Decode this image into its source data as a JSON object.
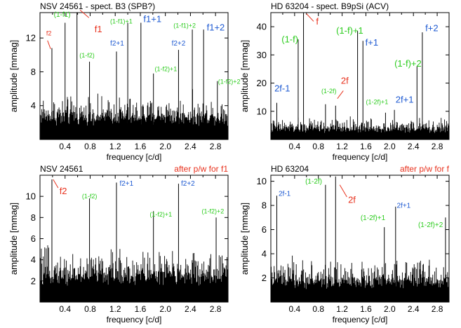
{
  "colors": {
    "red": "#e8321e",
    "green": "#2ccc1e",
    "blue": "#1e5ad2",
    "black": "#000000"
  },
  "chart_data": [
    {
      "type": "line",
      "panel": "top-left",
      "title_left": "NSV 24561 - spect. B3 (SPB?)",
      "title_right": "",
      "xlabel": "frequency [c/d]",
      "ylabel": "amplitude [mmag]",
      "xlim": [
        0.0,
        3.0
      ],
      "ylim": [
        0.0,
        15.0
      ],
      "xticks": [
        "0.4",
        "0.8",
        "1.2",
        "1.6",
        "2.0",
        "2.4",
        "2.8"
      ],
      "yticks": [
        "4",
        "8",
        "12"
      ],
      "noise_level": 4.5,
      "peaks": [
        {
          "x": 0.59,
          "y": 15.0
        },
        {
          "x": 0.19,
          "y": 10.8
        },
        {
          "x": 0.4,
          "y": 13.8
        },
        {
          "x": 0.79,
          "y": 9.2
        },
        {
          "x": 1.22,
          "y": 10.4
        },
        {
          "x": 1.4,
          "y": 13.8
        },
        {
          "x": 1.61,
          "y": 13.8
        },
        {
          "x": 1.81,
          "y": 7.8
        },
        {
          "x": 2.21,
          "y": 10.6
        },
        {
          "x": 2.43,
          "y": 13.0
        },
        {
          "x": 2.61,
          "y": 13.0
        },
        {
          "x": 2.83,
          "y": 6.9
        }
      ],
      "annotations": [
        {
          "text": "f2",
          "color": "red",
          "x": 0.1,
          "y": 12.3,
          "size": 9
        },
        {
          "text": "(1-f1)",
          "color": "green",
          "x": 0.22,
          "y": 14.5,
          "size": 10
        },
        {
          "text": "f1",
          "color": "red",
          "x": 0.87,
          "y": 12.7,
          "size": 13
        },
        {
          "text": "(1-f2)",
          "color": "green",
          "x": 0.63,
          "y": 9.7,
          "size": 9
        },
        {
          "text": "(1-f1)+1",
          "color": "green",
          "x": 1.12,
          "y": 13.7,
          "size": 9
        },
        {
          "text": "f1+1",
          "color": "blue",
          "x": 1.65,
          "y": 13.9,
          "size": 13
        },
        {
          "text": "f2+1",
          "color": "blue",
          "x": 1.12,
          "y": 11.1,
          "size": 10
        },
        {
          "text": "(1-f2)+1",
          "color": "green",
          "x": 1.83,
          "y": 8.1,
          "size": 9
        },
        {
          "text": "(1-f1)+2",
          "color": "green",
          "x": 2.13,
          "y": 13.2,
          "size": 9
        },
        {
          "text": "f2+2",
          "color": "blue",
          "x": 2.1,
          "y": 11.1,
          "size": 10
        },
        {
          "text": "f1+2",
          "color": "blue",
          "x": 2.66,
          "y": 12.9,
          "size": 13
        },
        {
          "text": "(1-f2)+2",
          "color": "green",
          "x": 2.84,
          "y": 6.6,
          "size": 9
        }
      ],
      "leaders": [
        {
          "from": [
            0.12,
            11.7
          ],
          "to": [
            0.17,
            10.7
          ]
        },
        {
          "from": [
            0.78,
            14.4
          ],
          "to": [
            0.64,
            15.3
          ]
        }
      ]
    },
    {
      "type": "line",
      "panel": "top-right",
      "title_left": "HD 63204 - spect. B9pSi (ACV)",
      "title_right": "",
      "xlabel": "frequency [c/d]",
      "ylabel": "amplitude [mmag]",
      "xlim": [
        0.0,
        3.0
      ],
      "ylim": [
        0.0,
        45.0
      ],
      "xticks": [
        "0.4",
        "0.8",
        "1.2",
        "1.6",
        "2.0",
        "2.4",
        "2.8"
      ],
      "yticks": [
        "10",
        "20",
        "30",
        "40"
      ],
      "noise_level": 6.5,
      "peaks": [
        {
          "x": 0.1,
          "y": 13.0
        },
        {
          "x": 0.46,
          "y": 35.5
        },
        {
          "x": 0.55,
          "y": 45.0
        },
        {
          "x": 0.92,
          "y": 12.5
        },
        {
          "x": 1.09,
          "y": 12.0
        },
        {
          "x": 1.46,
          "y": 38.5
        },
        {
          "x": 1.55,
          "y": 35.0
        },
        {
          "x": 1.93,
          "y": 9.5
        },
        {
          "x": 2.08,
          "y": 10.5
        },
        {
          "x": 2.46,
          "y": 26.0
        },
        {
          "x": 2.55,
          "y": 38.0
        }
      ],
      "annotations": [
        {
          "text": "(1-f)",
          "color": "green",
          "x": 0.18,
          "y": 34.4,
          "size": 13
        },
        {
          "text": "f",
          "color": "red",
          "x": 0.76,
          "y": 40.8,
          "size": 13
        },
        {
          "text": "2f-1",
          "color": "blue",
          "x": 0.06,
          "y": 17.0,
          "size": 13
        },
        {
          "text": "(1-2f)",
          "color": "green",
          "x": 0.85,
          "y": 16.4,
          "size": 9
        },
        {
          "text": "2f",
          "color": "red",
          "x": 1.18,
          "y": 19.8,
          "size": 13
        },
        {
          "text": "(1-f)+1",
          "color": "green",
          "x": 1.1,
          "y": 37.6,
          "size": 13
        },
        {
          "text": "f+1",
          "color": "blue",
          "x": 1.59,
          "y": 33.3,
          "size": 13
        },
        {
          "text": "(1-2f)+1",
          "color": "green",
          "x": 1.6,
          "y": 12.5,
          "size": 9
        },
        {
          "text": "2f+1",
          "color": "blue",
          "x": 2.1,
          "y": 13.0,
          "size": 13
        },
        {
          "text": "(1-f)+2",
          "color": "green",
          "x": 2.08,
          "y": 25.8,
          "size": 13
        },
        {
          "text": "f+2",
          "color": "blue",
          "x": 2.6,
          "y": 38.4,
          "size": 13
        }
      ],
      "leaders": [
        {
          "from": [
            0.72,
            41.9
          ],
          "to": [
            0.6,
            44.6
          ]
        },
        {
          "from": [
            1.22,
            17.3
          ],
          "to": [
            1.12,
            14.5
          ]
        }
      ]
    },
    {
      "type": "line",
      "panel": "bottom-left",
      "title_left": "NSV 24561",
      "title_right": "after p/w for f1",
      "xlabel": "frequency [c/d]",
      "ylabel": "amplitude [mmag]",
      "xlim": [
        0.0,
        3.0
      ],
      "ylim": [
        0.0,
        12.0
      ],
      "xticks": [
        "0.4",
        "0.8",
        "1.2",
        "1.6",
        "2.0",
        "2.4",
        "2.8"
      ],
      "yticks": [
        "2",
        "4",
        "6",
        "8",
        "10"
      ],
      "noise_level": 4.3,
      "peaks": [
        {
          "x": 0.19,
          "y": 11.6
        },
        {
          "x": 0.79,
          "y": 9.8
        },
        {
          "x": 1.22,
          "y": 11.3
        },
        {
          "x": 1.81,
          "y": 8.6
        },
        {
          "x": 2.21,
          "y": 11.2
        },
        {
          "x": 2.81,
          "y": 8.0
        }
      ],
      "annotations": [
        {
          "text": "f2",
          "color": "red",
          "x": 0.31,
          "y": 10.2,
          "size": 13
        },
        {
          "text": "(1-f2)",
          "color": "green",
          "x": 0.67,
          "y": 9.8,
          "size": 9
        },
        {
          "text": "f2+1",
          "color": "blue",
          "x": 1.27,
          "y": 11.0,
          "size": 10
        },
        {
          "text": "(1-f2)+1",
          "color": "green",
          "x": 1.75,
          "y": 8.1,
          "size": 9
        },
        {
          "text": "f2+2",
          "color": "blue",
          "x": 2.25,
          "y": 11.0,
          "size": 10
        },
        {
          "text": "(1-f2)+2",
          "color": "green",
          "x": 2.58,
          "y": 8.4,
          "size": 9
        }
      ],
      "leaders": [
        {
          "from": [
            0.29,
            10.8
          ],
          "to": [
            0.21,
            11.6
          ]
        }
      ]
    },
    {
      "type": "line",
      "panel": "bottom-right",
      "title_left": "HD 63204",
      "title_right": "after p/w for f",
      "xlabel": "frequency [c/d]",
      "ylabel": "amplitude [mmag]",
      "xlim": [
        0.0,
        3.0
      ],
      "ylim": [
        0.0,
        10.5
      ],
      "xticks": [
        "0.4",
        "0.8",
        "1.2",
        "1.6",
        "2.0",
        "2.4",
        "2.8"
      ],
      "yticks": [
        "2",
        "4",
        "6",
        "8",
        "10"
      ],
      "noise_level": 3.0,
      "peaks": [
        {
          "x": 0.1,
          "y": 8.8
        },
        {
          "x": 0.92,
          "y": 9.7
        },
        {
          "x": 1.09,
          "y": 10.4
        },
        {
          "x": 1.91,
          "y": 6.2
        },
        {
          "x": 2.1,
          "y": 7.9
        },
        {
          "x": 2.94,
          "y": 7.0
        }
      ],
      "annotations": [
        {
          "text": "2f-1",
          "color": "blue",
          "x": 0.13,
          "y": 8.8,
          "size": 10
        },
        {
          "text": "(1-2f)",
          "color": "green",
          "x": 0.58,
          "y": 9.8,
          "size": 10
        },
        {
          "text": "2f",
          "color": "red",
          "x": 1.3,
          "y": 8.2,
          "size": 13
        },
        {
          "text": "(1-2f)+1",
          "color": "green",
          "x": 1.51,
          "y": 6.8,
          "size": 10
        },
        {
          "text": "2f+1",
          "color": "blue",
          "x": 2.12,
          "y": 7.8,
          "size": 10
        },
        {
          "text": "(1-2f)+2",
          "color": "green",
          "x": 2.48,
          "y": 6.2,
          "size": 10
        }
      ],
      "leaders": [
        {
          "from": [
            1.28,
            8.7
          ],
          "to": [
            1.16,
            9.7
          ]
        }
      ]
    }
  ]
}
